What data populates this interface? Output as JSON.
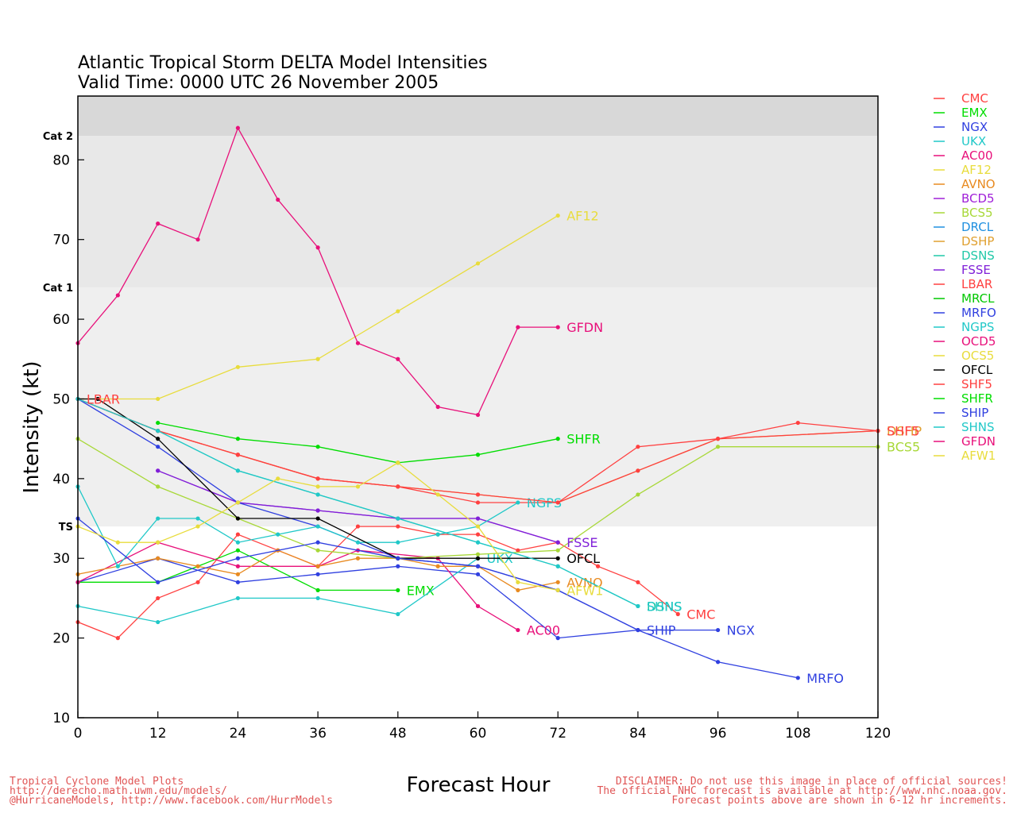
{
  "chart_data": {
    "type": "line",
    "title": "Atlantic Tropical Storm DELTA Model Intensities",
    "subtitle": "Valid Time: 0000 UTC 26 November 2005",
    "xlabel": "Forecast Hour",
    "ylabel": "Intensity (kt)",
    "xlim": [
      0,
      120
    ],
    "ylim": [
      10,
      88
    ],
    "xticks": [
      "0",
      "12",
      "24",
      "36",
      "48",
      "60",
      "72",
      "84",
      "96",
      "108",
      "120"
    ],
    "yticks": [
      "10",
      "20",
      "30",
      "40",
      "50",
      "60",
      "70",
      "80"
    ],
    "bands": [
      {
        "from": 10,
        "to": 34,
        "color": "#ffffff"
      },
      {
        "from": 34,
        "to": 64,
        "color": "#efefef"
      },
      {
        "from": 64,
        "to": 83,
        "color": "#e8e8e8"
      },
      {
        "from": 83,
        "to": 88,
        "color": "#d8d8d8"
      }
    ],
    "category_labels": [
      {
        "label": "TS",
        "value": 34
      },
      {
        "label": "Cat 1",
        "value": 64
      },
      {
        "label": "Cat 2",
        "value": 83
      }
    ],
    "series": [
      {
        "name": "CMC",
        "color": "#ff4040",
        "end_label": true,
        "x": [
          0,
          6,
          12,
          18,
          24,
          30,
          36,
          42,
          48,
          54,
          60,
          66,
          72,
          78,
          84,
          90
        ],
        "y": [
          22,
          20,
          25,
          27,
          33,
          31,
          29,
          34,
          34,
          33,
          33,
          31,
          32,
          29,
          27,
          23
        ]
      },
      {
        "name": "EMX",
        "color": "#00dd00",
        "end_label": true,
        "x": [
          0,
          12,
          24,
          36,
          48
        ],
        "y": [
          27,
          27,
          31,
          26,
          26
        ]
      },
      {
        "name": "NGX",
        "color": "#3040e0",
        "end_label": true,
        "x": [
          0,
          12,
          24,
          36,
          48,
          60,
          72,
          84,
          96
        ],
        "y": [
          27,
          30,
          27,
          28,
          29,
          28,
          20,
          21,
          21
        ]
      },
      {
        "name": "UKX",
        "color": "#20c8c8",
        "end_label": true,
        "x": [
          0,
          12,
          24,
          36,
          48,
          60
        ],
        "y": [
          24,
          22,
          25,
          25,
          23,
          30
        ]
      },
      {
        "name": "AC00",
        "color": "#e8107a",
        "end_label": true,
        "x": [
          0,
          12,
          24,
          36,
          42,
          54,
          60,
          66
        ],
        "y": [
          27,
          32,
          29,
          29,
          31,
          30,
          24,
          21
        ]
      },
      {
        "name": "AF12",
        "color": "#e8dc3c",
        "end_label": true,
        "x": [
          0,
          12,
          24,
          36,
          48,
          60,
          72
        ],
        "y": [
          50,
          50,
          54,
          55,
          61,
          67,
          73
        ]
      },
      {
        "name": "AVNO",
        "color": "#e88a20",
        "end_label": true,
        "x": [
          0,
          12,
          18,
          24,
          30,
          36,
          42,
          48,
          54,
          60,
          66,
          72
        ],
        "y": [
          28,
          30,
          29,
          28,
          31,
          29,
          30,
          30,
          29,
          29,
          26,
          27
        ]
      },
      {
        "name": "BCD5",
        "color": "#a020d8",
        "end_label": false,
        "x": [
          12,
          24,
          36,
          48,
          60,
          72
        ],
        "y": [
          41,
          37,
          36,
          35,
          35,
          32
        ]
      },
      {
        "name": "BCS5",
        "color": "#a8d838",
        "end_label": true,
        "x": [
          0,
          12,
          24,
          36,
          48,
          60,
          72,
          84,
          96,
          120
        ],
        "y": [
          45,
          39,
          35,
          31,
          30,
          30.5,
          31,
          38,
          44,
          44
        ]
      },
      {
        "name": "DRCL",
        "color": "#2090e0",
        "end_label": false,
        "x": [],
        "y": []
      },
      {
        "name": "DSHP",
        "color": "#e0a030",
        "end_label": true,
        "x": [
          0,
          12,
          24,
          36,
          48,
          60,
          72,
          84,
          96,
          120
        ],
        "y": [
          50,
          46,
          43,
          40,
          39,
          38,
          37,
          41,
          45,
          46
        ]
      },
      {
        "name": "DSNS",
        "color": "#20c8a8",
        "end_label": true,
        "x": [
          0,
          12,
          24,
          36,
          48,
          60,
          72,
          84
        ],
        "y": [
          50,
          46,
          41,
          38,
          35,
          32,
          29,
          24
        ]
      },
      {
        "name": "FSSE",
        "color": "#8020d8",
        "end_label": true,
        "x": [
          12,
          24,
          36,
          48,
          60,
          72
        ],
        "y": [
          41,
          37,
          36,
          35,
          35,
          32
        ]
      },
      {
        "name": "LBAR",
        "color": "#ff4040",
        "end_label": false,
        "x": [
          0,
          12,
          24,
          36,
          48,
          60,
          72,
          84,
          96,
          108,
          120
        ],
        "y": [
          50,
          46,
          43,
          40,
          39,
          37,
          37,
          44,
          45,
          47,
          46
        ]
      },
      {
        "name": "MRCL",
        "color": "#00c800",
        "end_label": false,
        "x": [],
        "y": []
      },
      {
        "name": "MRFO",
        "color": "#3040e0",
        "end_label": true,
        "x": [
          0,
          12,
          24,
          36,
          48,
          60,
          72,
          84,
          96,
          108
        ],
        "y": [
          50,
          44,
          37,
          34,
          30,
          29,
          26,
          21,
          17,
          15
        ]
      },
      {
        "name": "NGPS",
        "color": "#20c8c8",
        "end_label": true,
        "x": [
          0,
          6,
          12,
          18,
          24,
          30,
          36,
          42,
          48,
          54,
          60,
          66
        ],
        "y": [
          39,
          29,
          35,
          35,
          32,
          33,
          34,
          32,
          32,
          33,
          34,
          37
        ]
      },
      {
        "name": "OCD5",
        "color": "#e8107a",
        "end_label": false,
        "x": [],
        "y": []
      },
      {
        "name": "OCS5",
        "color": "#e8dc3c",
        "end_label": false,
        "x": [],
        "y": []
      },
      {
        "name": "OFCL",
        "color": "#000000",
        "end_label": true,
        "x": [
          0,
          3,
          12,
          24,
          36,
          48,
          60,
          72
        ],
        "y": [
          50,
          50,
          45,
          35,
          35,
          30,
          30,
          30
        ]
      },
      {
        "name": "SHF5",
        "color": "#ff4040",
        "end_label": true,
        "x": [
          0,
          12,
          24,
          36,
          48,
          60,
          72,
          84,
          96,
          120
        ],
        "y": [
          50,
          46,
          43,
          40,
          39,
          38,
          37,
          41,
          45,
          46
        ]
      },
      {
        "name": "SHFR",
        "color": "#00dd00",
        "end_label": true,
        "x": [
          12,
          24,
          36,
          48,
          60,
          72
        ],
        "y": [
          47,
          45,
          44,
          42,
          43,
          45
        ]
      },
      {
        "name": "SHIP",
        "color": "#3040e0",
        "end_label": true,
        "x": [
          0,
          12,
          24,
          36,
          48,
          60,
          72,
          84
        ],
        "y": [
          35,
          27,
          30,
          32,
          30,
          29,
          26,
          21
        ]
      },
      {
        "name": "SHNS",
        "color": "#20c8c8",
        "end_label": true,
        "x": [
          0,
          12,
          24,
          36,
          48,
          60,
          72,
          84
        ],
        "y": [
          50,
          46,
          41,
          38,
          35,
          32,
          29,
          24
        ]
      },
      {
        "name": "GFDN",
        "color": "#e8107a",
        "end_label": true,
        "x": [
          0,
          6,
          12,
          18,
          24,
          30,
          36,
          42,
          48,
          54,
          60,
          66,
          72
        ],
        "y": [
          57,
          63,
          72,
          70,
          84,
          75,
          69,
          57,
          55,
          49,
          48,
          59,
          59
        ]
      },
      {
        "name": "AFW1",
        "color": "#e8dc3c",
        "end_label": true,
        "x": [
          0,
          6,
          12,
          18,
          24,
          30,
          36,
          42,
          48,
          54,
          60,
          66,
          72
        ],
        "y": [
          34,
          32,
          32,
          34,
          37,
          40,
          39,
          39,
          42,
          38,
          34,
          27,
          26
        ]
      }
    ]
  },
  "end_labels": [
    {
      "text": "LBAR",
      "x": 0,
      "y": 50,
      "color": "#ff4040"
    }
  ],
  "footer": {
    "left": [
      "Tropical Cyclone Model Plots",
      "http://derecho.math.uwm.edu/models/",
      "@HurricaneModels, http://www.facebook.com/HurrModels"
    ],
    "right": [
      "DISCLAIMER: Do not use this image in place of official sources!",
      "The official NHC forecast is available at http://www.nhc.noaa.gov.",
      "Forecast points above are shown in 6-12 hr increments."
    ]
  }
}
